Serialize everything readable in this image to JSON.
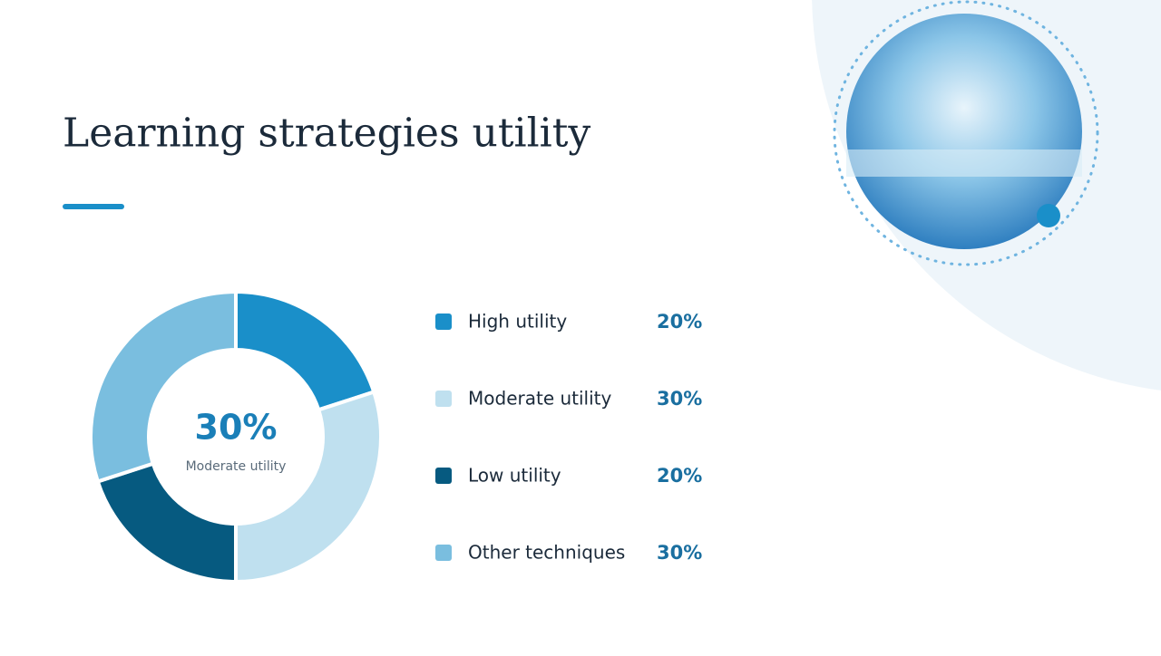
{
  "chart_data": {
    "type": "donut",
    "title": "Learning strategies utility",
    "categories": [
      "High utility",
      "Moderate utility",
      "Low utility",
      "Other techniques"
    ],
    "values": [
      20,
      30,
      20,
      30
    ],
    "value_labels": [
      "20%",
      "30%",
      "20%",
      "30%"
    ],
    "colors": [
      "#1a8fc9",
      "#bfe0ef",
      "#065a80",
      "#7abedf"
    ],
    "legend": "right"
  }
}
